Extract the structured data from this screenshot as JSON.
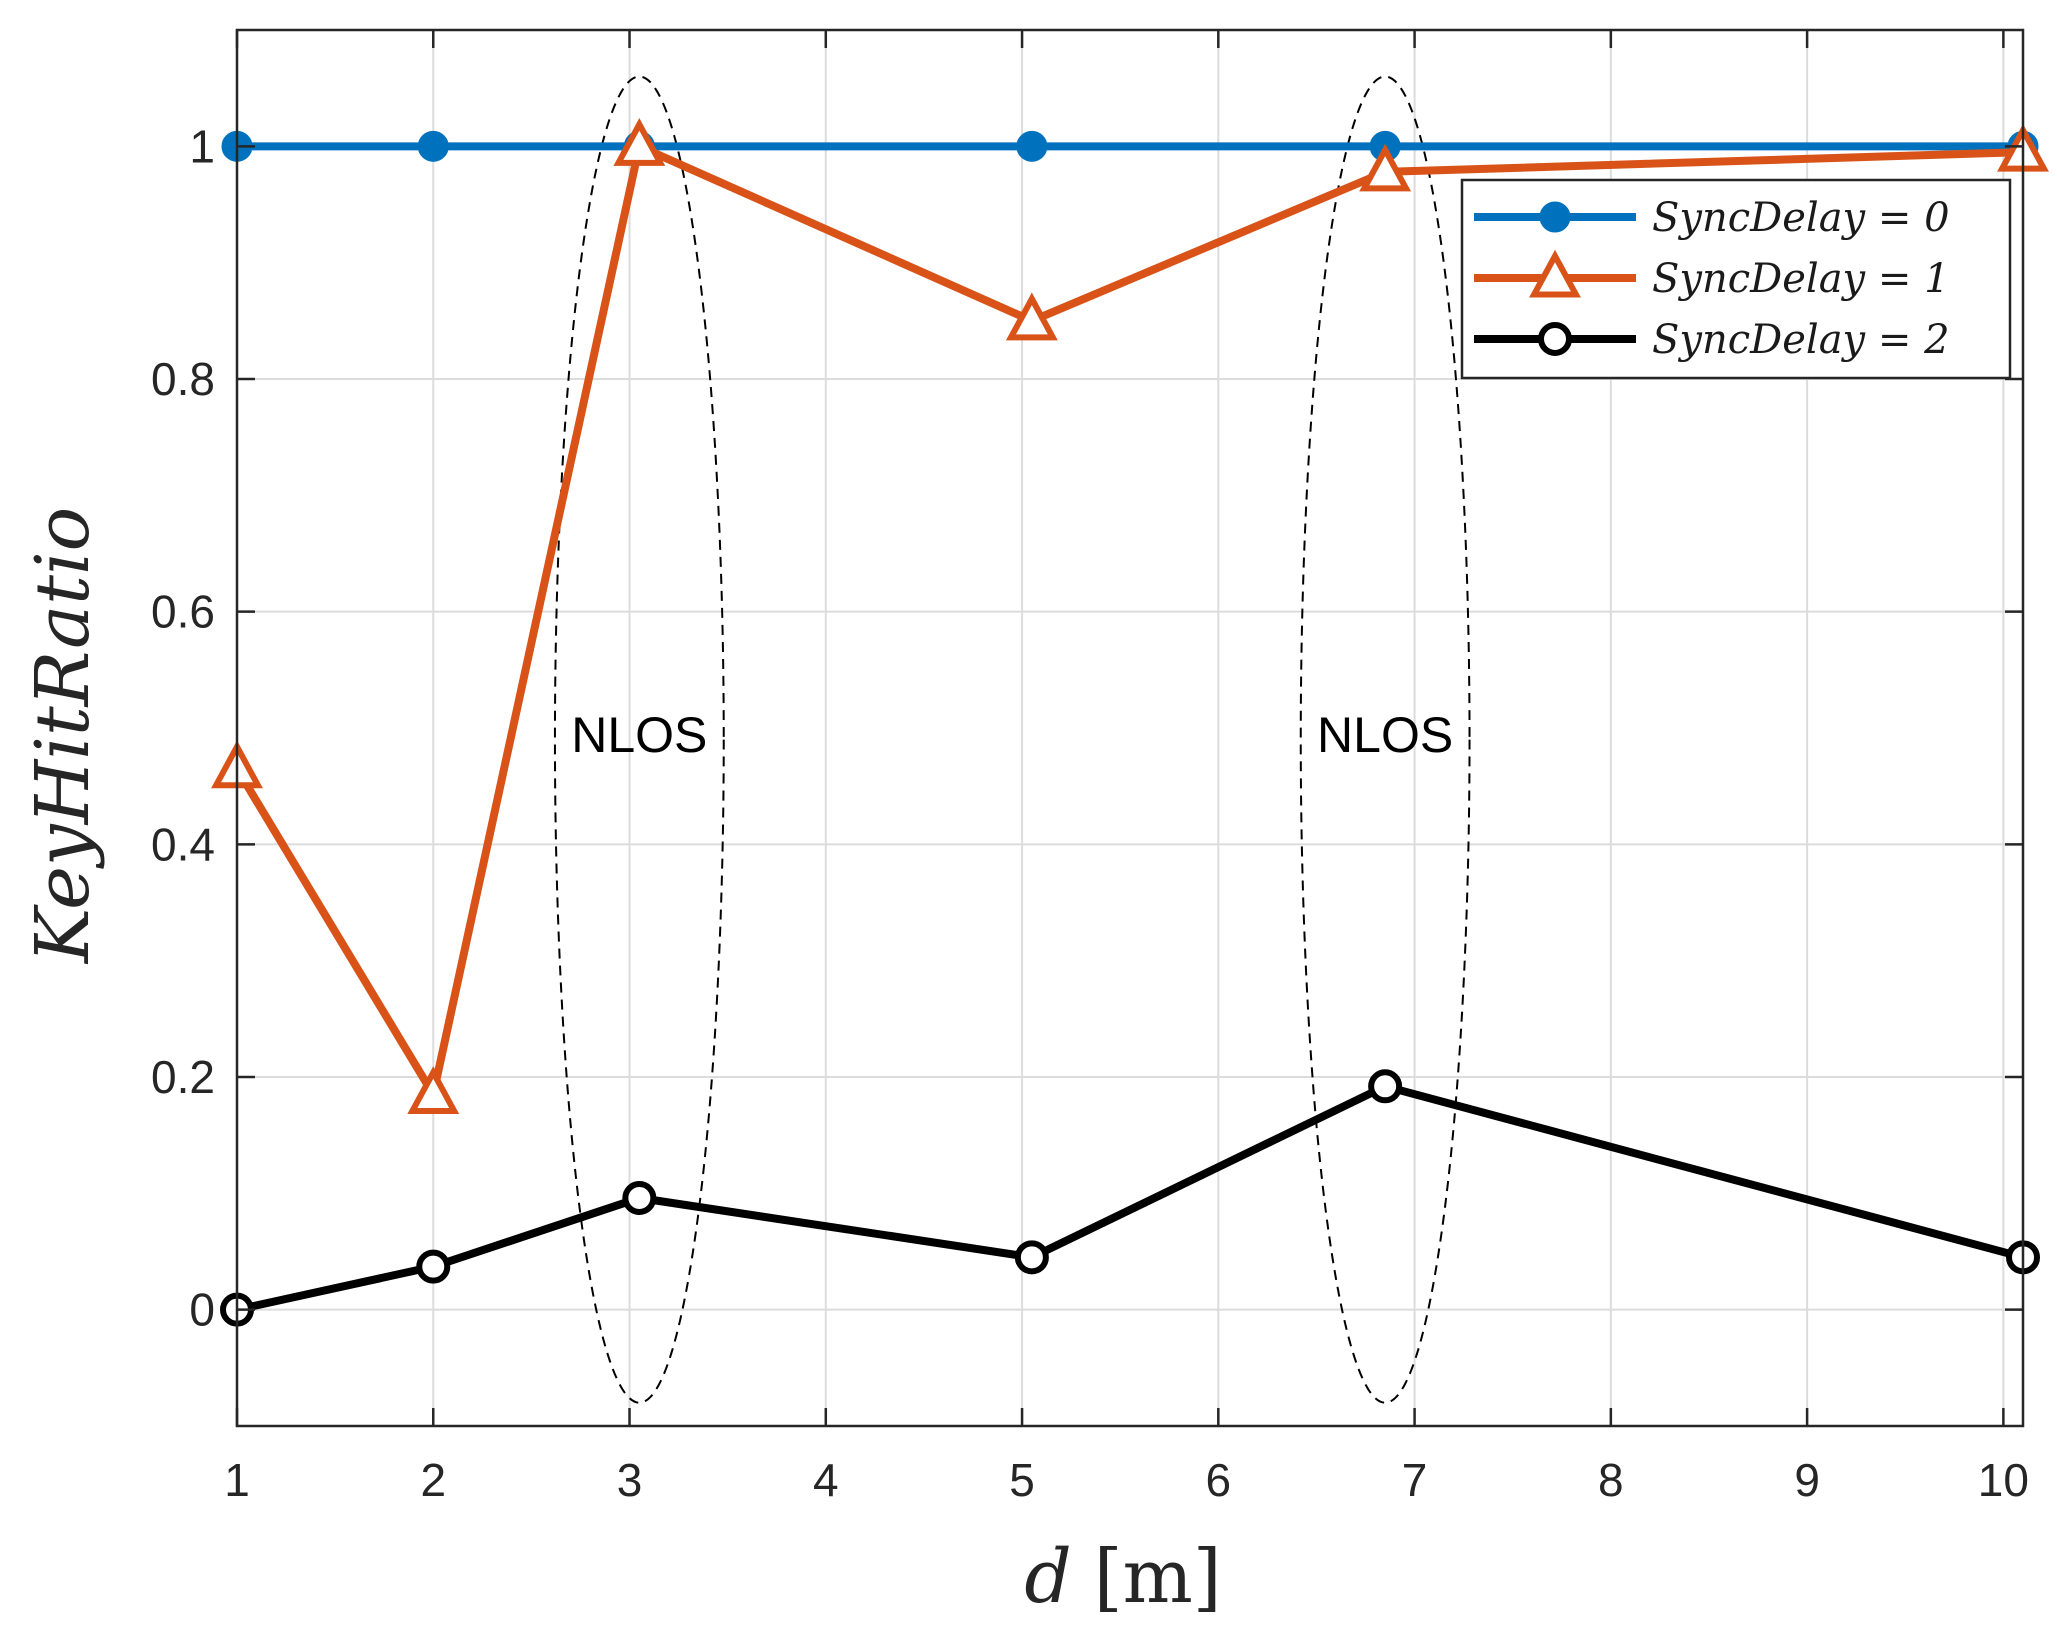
{
  "chart_data": {
    "type": "line",
    "title": "",
    "xlabel": "d",
    "xlabel_unit": "[m]",
    "ylabel": "KeyHitRatio",
    "xlim": [
      1,
      10.1
    ],
    "ylim": [
      -0.1,
      1.1
    ],
    "xticks": [
      1,
      2,
      3,
      4,
      5,
      6,
      7,
      8,
      9,
      10
    ],
    "xtick_labels": [
      "1",
      "2",
      "3",
      "4",
      "5",
      "6",
      "7",
      "8",
      "9",
      "10"
    ],
    "yticks": [
      0,
      0.2,
      0.4,
      0.6,
      0.8,
      1
    ],
    "ytick_labels": [
      "0",
      "0.2",
      "0.4",
      "0.6",
      "0.8",
      "1"
    ],
    "grid": true,
    "legend_position": "top-right",
    "series": [
      {
        "name": "SyncDelay = 0",
        "color": "#0072BD",
        "marker": "filled-circle",
        "x": [
          1,
          2,
          3.05,
          5.05,
          6.85,
          10.1
        ],
        "y": [
          1,
          1,
          1,
          1,
          1,
          1
        ]
      },
      {
        "name": "SyncDelay = 1",
        "color": "#D95319",
        "marker": "triangle",
        "x": [
          1,
          2,
          3.05,
          5.05,
          6.85,
          10.1
        ],
        "y": [
          0.465,
          0.185,
          1.0,
          0.85,
          0.978,
          0.995
        ]
      },
      {
        "name": "SyncDelay = 2",
        "color": "#000000",
        "marker": "open-circle",
        "x": [
          1,
          2,
          3.05,
          5.05,
          6.85,
          10.1
        ],
        "y": [
          0.0,
          0.037,
          0.096,
          0.045,
          0.192,
          0.045
        ]
      }
    ],
    "annotations": [
      {
        "text": "NLOS",
        "x": 3.05,
        "y": 0.495,
        "ellipse_x": [
          2.62,
          3.48
        ],
        "ellipse_y": [
          -0.08,
          1.06
        ]
      },
      {
        "text": "NLOS",
        "x": 6.85,
        "y": 0.495,
        "ellipse_x": [
          6.42,
          7.28
        ],
        "ellipse_y": [
          -0.08,
          1.06
        ]
      }
    ]
  }
}
